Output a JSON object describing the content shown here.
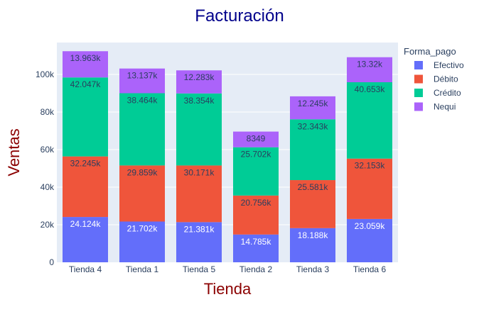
{
  "chart_data": {
    "type": "bar",
    "stacked": true,
    "title": "Facturación",
    "xlabel": "Tienda",
    "ylabel": "Ventas",
    "categories": [
      "Tienda 4",
      "Tienda 1",
      "Tienda 5",
      "Tienda 2",
      "Tienda 3",
      "Tienda 6"
    ],
    "ylim": [
      0,
      117000
    ],
    "yticks": [
      0,
      20000,
      40000,
      60000,
      80000,
      100000
    ],
    "ytick_labels": [
      "0",
      "20k",
      "40k",
      "60k",
      "80k",
      "100k"
    ],
    "grid": true,
    "legend": {
      "title": "Forma_pago",
      "position": "right"
    },
    "series": [
      {
        "name": "Efectivo",
        "color": "#636efa",
        "values": [
          24124,
          21702,
          21381,
          14785,
          18188,
          23059
        ],
        "labels": [
          "24.124k",
          "21.702k",
          "21.381k",
          "14.785k",
          "18.188k",
          "23.059k"
        ],
        "label_color": "#ffffff"
      },
      {
        "name": "Débito",
        "color": "#ef553b",
        "values": [
          32245,
          29859,
          30171,
          20756,
          25581,
          32153
        ],
        "labels": [
          "32.245k",
          "29.859k",
          "30.171k",
          "20.756k",
          "25.581k",
          "32.153k"
        ],
        "label_color": "#2a3f5f"
      },
      {
        "name": "Crédito",
        "color": "#00cc96",
        "values": [
          42047,
          38464,
          38354,
          25702,
          32343,
          40653
        ],
        "labels": [
          "42.047k",
          "38.464k",
          "38.354k",
          "25.702k",
          "32.343k",
          "40.653k"
        ],
        "label_color": "#2a3f5f"
      },
      {
        "name": "Nequi",
        "color": "#ab63fa",
        "values": [
          13963,
          13137,
          12283,
          8349,
          12245,
          13320
        ],
        "labels": [
          "13.963k",
          "13.137k",
          "12.283k",
          "8349",
          "12.245k",
          "13.32k"
        ],
        "label_color": "#2a3f5f"
      }
    ]
  }
}
